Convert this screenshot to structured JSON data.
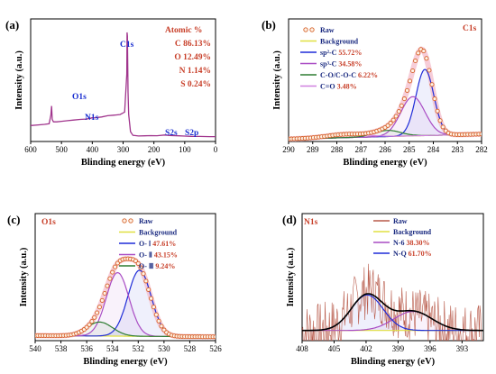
{
  "chart_data": [
    {
      "panel": "(a)",
      "type": "line",
      "xlabel": "Blinding energy (eV)",
      "ylabel": "Intensity (a.u.)",
      "xlim": [
        600,
        0
      ],
      "ylim": [
        0,
        100
      ],
      "xticks": [
        600,
        500,
        400,
        300,
        200,
        100,
        0
      ],
      "series": [
        {
          "color": "#a0348c",
          "x": [
            600,
            575,
            555,
            540,
            534,
            532,
            530,
            526,
            515,
            500,
            480,
            460,
            440,
            420,
            405,
            400,
            398,
            390,
            370,
            350,
            330,
            310,
            295,
            288,
            287,
            286,
            284,
            282,
            276,
            268,
            250,
            230,
            210,
            190,
            165,
            150,
            120,
            100,
            80,
            50,
            20,
            0
          ],
          "y": [
            13,
            13.5,
            14,
            14.5,
            22,
            29,
            18,
            16,
            16,
            16.5,
            17,
            17.5,
            18,
            18.3,
            19,
            19.5,
            19.2,
            19.4,
            20,
            21,
            21.5,
            22,
            24,
            55,
            89,
            86,
            40,
            22,
            8,
            5,
            4.5,
            4.6,
            4.8,
            4.7,
            5.3,
            4.9,
            4.6,
            4.4,
            4.2,
            4.1,
            4,
            4
          ]
        }
      ],
      "peak_labels": [
        "O1s",
        "N1s",
        "C1s",
        "S2s",
        "S2p"
      ],
      "annotation_title": "Atomic %",
      "annotations": [
        "C 86.13%",
        "O 12.49%",
        "N 1.14%",
        "S 0.24%"
      ]
    },
    {
      "panel": "(b)",
      "element": "C1s",
      "type": "line",
      "xlabel": "Blinding energy (eV)",
      "ylabel": "Intensity (a.u.)",
      "xlim": [
        290,
        282
      ],
      "ylim": [
        0,
        100
      ],
      "xticks": [
        290,
        289,
        288,
        287,
        286,
        285,
        284,
        283,
        282
      ],
      "legend": [
        "Raw",
        "Background",
        "sp²-C 55.72%",
        "sp³-C 34.58%",
        "C-O/C-O-C 6.22%",
        "C=O 3.48%"
      ],
      "series": [
        {
          "name": "Raw",
          "color": "#d5622a",
          "style": "markers",
          "peaks": [
            [
              284.4,
              52.5,
              0.38
            ],
            [
              284.9,
              27,
              0.5
            ],
            [
              285.9,
              4.8,
              0.55
            ],
            [
              287.6,
              2.7,
              0.8
            ]
          ],
          "baseline": [
            2,
            6
          ]
        },
        {
          "name": "Background",
          "color": "#e0e040",
          "baseline": [
            2,
            6
          ]
        },
        {
          "name": "sp²-C 55.72%",
          "color": "#1f2cd8",
          "peak": [
            284.35,
            54,
            0.37
          ],
          "baseline": [
            2,
            6
          ]
        },
        {
          "name": "sp³-C 34.58%",
          "color": "#a94cc4",
          "peak": [
            284.85,
            32,
            0.5
          ],
          "baseline": [
            2,
            6
          ]
        },
        {
          "name": "C-O/C-O-C 6.22%",
          "color": "#2e7d32",
          "peak": [
            285.9,
            5,
            0.55
          ],
          "baseline": [
            2,
            6
          ]
        },
        {
          "name": "C=O 3.48%",
          "color": "#d080e0",
          "peak": [
            287.6,
            2.8,
            0.8
          ],
          "baseline": [
            2,
            6
          ]
        }
      ]
    },
    {
      "panel": "(c)",
      "element": "O1s",
      "type": "line",
      "xlabel": "Blinding energy (eV)",
      "ylabel": "Intensity (a.u.)",
      "xlim": [
        540,
        526
      ],
      "ylim": [
        0,
        100
      ],
      "xticks": [
        540,
        538,
        536,
        534,
        532,
        530,
        528,
        526
      ],
      "legend": [
        "Raw",
        "Background",
        "O- Ⅰ 47.61%",
        "O- Ⅱ 43.15%",
        "O- Ⅲ 9.24%"
      ],
      "series": [
        {
          "name": "Raw",
          "color": "#d5622a",
          "style": "markers",
          "peaks": [
            [
              531.9,
              48,
              0.9
            ],
            [
              533.6,
              46,
              0.9
            ],
            [
              535.0,
              9,
              1.0
            ]
          ],
          "baseline": [
            4,
            3
          ]
        },
        {
          "name": "Background",
          "color": "#e0e040",
          "baseline": [
            4,
            3
          ]
        },
        {
          "name": "O- Ⅰ 47.61%",
          "color": "#1f2cd8",
          "peak": [
            531.9,
            52,
            0.9
          ],
          "baseline": [
            4,
            3
          ]
        },
        {
          "name": "O- Ⅱ 43.15%",
          "color": "#a94cc4",
          "peak": [
            533.6,
            50,
            0.88
          ],
          "baseline": [
            4,
            3
          ]
        },
        {
          "name": "O- Ⅲ 9.24%",
          "color": "#2e7d32",
          "peak": [
            535.0,
            11,
            1.0
          ],
          "baseline": [
            4,
            3
          ]
        }
      ]
    },
    {
      "panel": "(d)",
      "element": "N1s",
      "type": "line",
      "xlabel": "Blinding energy (eV)",
      "ylabel": "Intensity (a.u.)",
      "xlim": [
        408,
        391
      ],
      "ylim": [
        0,
        100
      ],
      "xticks": [
        408,
        405,
        402,
        399,
        396,
        393
      ],
      "legend": [
        "Raw",
        "Background",
        "N-6 38.30%",
        "N-Q 61.70%"
      ],
      "series": [
        {
          "name": "Raw",
          "color": "#b85a4a",
          "style": "noisy",
          "peaks": [
            [
              401.8,
              30,
              1.6
            ],
            [
              397.7,
              12,
              1.8
            ]
          ],
          "baseline": [
            8,
            8
          ],
          "noise": 22
        },
        {
          "name": "Background",
          "color": "#e0e040",
          "baseline": [
            8,
            8
          ]
        },
        {
          "name": "N-6 38.30%",
          "color": "#a94cc4",
          "peak": [
            397.6,
            15,
            1.8
          ],
          "baseline": [
            8,
            8
          ]
        },
        {
          "name": "N-Q 61.70%",
          "color": "#1f2cd8",
          "peak": [
            401.9,
            28,
            1.5
          ],
          "baseline": [
            8,
            8
          ]
        },
        {
          "name": "Sum",
          "color": "#000000",
          "peaks": [
            [
              401.9,
              28,
              1.5
            ],
            [
              397.6,
              15,
              1.8
            ]
          ],
          "baseline": [
            8,
            8
          ]
        }
      ]
    }
  ]
}
